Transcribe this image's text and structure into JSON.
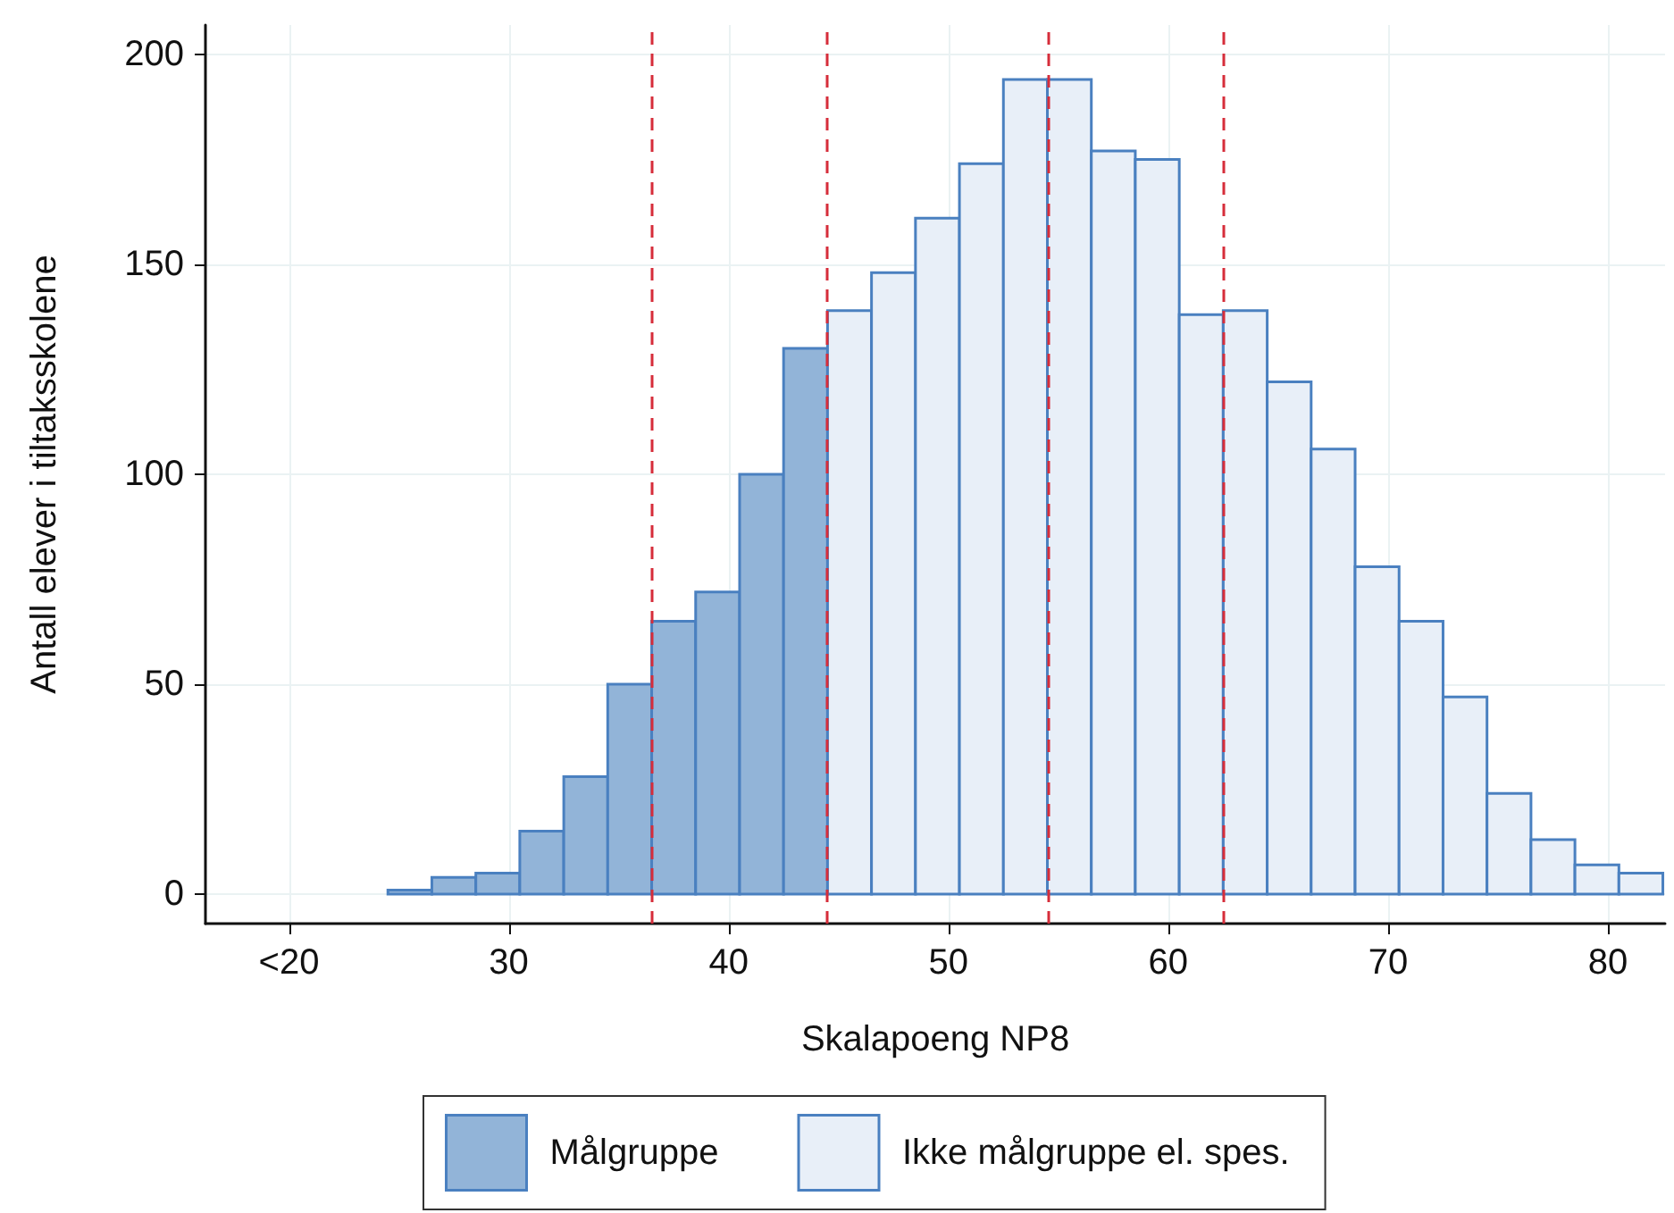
{
  "chart_data": {
    "type": "histogram",
    "xlabel": "Skalapoeng NP8",
    "ylabel": "Antall elever i tiltaksskolene",
    "bins": [
      24.5,
      26.5,
      28.5,
      30.5,
      32.5,
      34.5,
      36.5,
      38.5,
      40.5,
      42.5,
      44.5,
      46.5,
      48.5,
      50.5,
      52.5,
      54.5,
      56.5,
      58.5,
      60.5,
      62.5,
      64.5,
      66.5,
      68.5,
      70.5,
      72.5,
      74.5,
      76.5,
      78.5,
      80.5,
      82.5
    ],
    "series": [
      {
        "name": "Målgruppe",
        "color": "#92b4d8",
        "values": [
          1,
          4,
          5,
          15,
          28,
          50,
          65,
          72,
          100,
          130,
          null,
          null,
          null,
          null,
          null,
          null,
          null,
          null,
          null,
          null,
          null,
          null,
          null,
          null,
          null,
          null,
          null,
          null,
          null
        ]
      },
      {
        "name": "Ikke målgruppe el. spes.",
        "color": "#e8eff8",
        "values": [
          null,
          null,
          null,
          null,
          null,
          null,
          null,
          null,
          null,
          null,
          139,
          148,
          161,
          174,
          194,
          194,
          177,
          175,
          138,
          139,
          122,
          106,
          78,
          65,
          47,
          24,
          13,
          7,
          5
        ]
      }
    ],
    "xlim": [
      16.2,
      82.6
    ],
    "xticks": [
      {
        "value": 20,
        "label": "<20"
      },
      30,
      40,
      50,
      60,
      70,
      80
    ],
    "ylim": [
      -7,
      207
    ],
    "yticks": [
      0,
      50,
      100,
      150,
      200
    ],
    "ref_lines": [
      {
        "axis": "x",
        "value": 36.5,
        "color": "#d62d3a",
        "line_style": "dashed"
      },
      {
        "axis": "x",
        "value": 44.5,
        "color": "#d62d3a",
        "line_style": "dashed"
      },
      {
        "axis": "x",
        "value": 54.5,
        "color": "#d62d3a",
        "line_style": "dashed"
      },
      {
        "axis": "x",
        "value": 62.5,
        "color": "#d62d3a",
        "line_style": "dashed"
      }
    ],
    "grid": true,
    "legend": "bottom"
  }
}
